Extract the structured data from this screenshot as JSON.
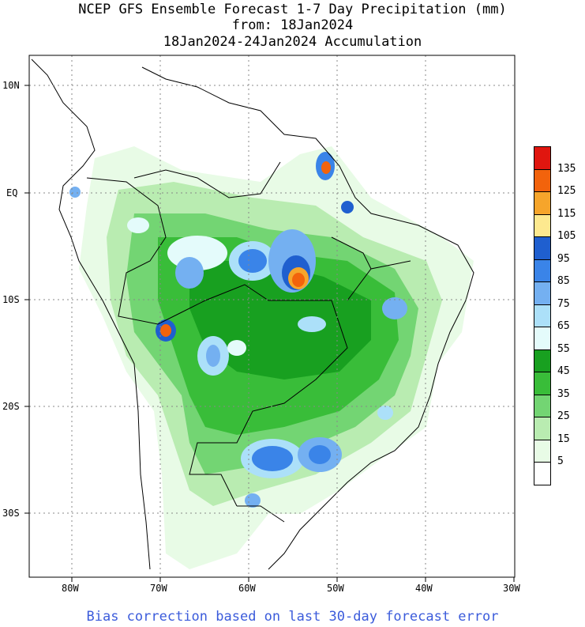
{
  "titles": {
    "line1": "NCEP GFS Ensemble Forecast 1-7 Day Precipitation (mm)",
    "line2": "from: 18Jan2024",
    "line3": "18Jan2024-24Jan2024 Accumulation"
  },
  "lat_labels": [
    "10N",
    "EQ",
    "10S",
    "20S",
    "30S"
  ],
  "lon_labels": [
    "80W",
    "70W",
    "60W",
    "50W",
    "40W",
    "30W"
  ],
  "legend": {
    "labels": [
      "135",
      "125",
      "115",
      "105",
      "95",
      "85",
      "75",
      "65",
      "55",
      "45",
      "35",
      "25",
      "15",
      "5"
    ],
    "colors": [
      "#e0160f",
      "#f2630c",
      "#f6a52b",
      "#fde98f",
      "#1f5fcf",
      "#3a84e8",
      "#74b0f1",
      "#ace0f9",
      "#e4fbfb",
      "#18a020",
      "#39bd39",
      "#73d573",
      "#b9ecb1",
      "#e8fbe6",
      "#ffffff"
    ]
  },
  "footer": "Bias correction based on last 30-day forecast error"
}
